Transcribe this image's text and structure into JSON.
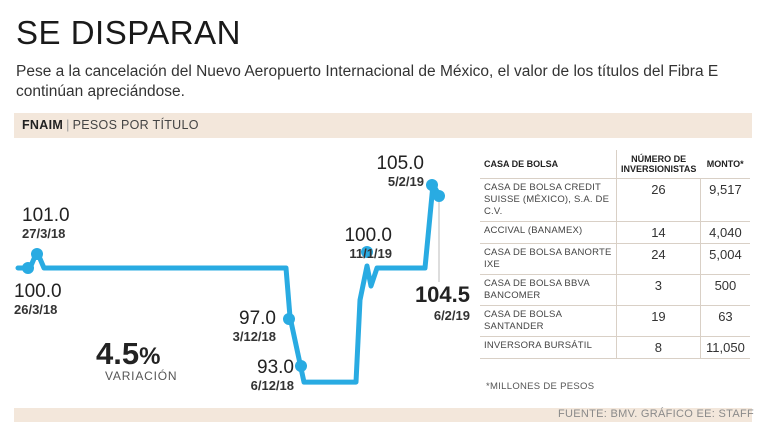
{
  "headline": "SE DISPARAN",
  "subtitle": "Pese a la cancelación del Nuevo Aeropuerto Internacional de México, el valor de los títulos del Fibra E continúan apreciándose.",
  "band": {
    "ticker": "FNAIM",
    "unit": "PESOS POR TÍTULO"
  },
  "variation": {
    "value": "4.5",
    "pct": "%",
    "label": "VARIACIÓN"
  },
  "source": "FUENTE: BMV. GRÁFICO EE: STAFF",
  "colors": {
    "line": "#29abe2",
    "band": "#f3e7db"
  },
  "chart_data": {
    "type": "line",
    "series": [
      {
        "values": [
          {
            "x": "26/3/18",
            "y": 100.0
          },
          {
            "x": "27/3/18",
            "y": 101.0
          },
          {
            "x": "3/12/18",
            "y": 100.0
          },
          {
            "x": "3/12/18",
            "y": 97.0
          },
          {
            "x": "6/12/18",
            "y": 93.0
          },
          {
            "x": "11/1/19",
            "y": 100.0
          },
          {
            "x": "5/2/19",
            "y": 105.0
          },
          {
            "x": "6/2/19",
            "y": 104.5
          }
        ]
      }
    ],
    "annotations": [
      {
        "value": "100.0",
        "date": "26/3/18"
      },
      {
        "value": "101.0",
        "date": "27/3/18"
      },
      {
        "value": "97.0",
        "date": "3/12/18"
      },
      {
        "value": "93.0",
        "date": "6/12/18"
      },
      {
        "value": "100.0",
        "date": "11/1/19"
      },
      {
        "value": "105.0",
        "date": "5/2/19"
      },
      {
        "value": "104.5",
        "date": "6/2/19"
      }
    ]
  },
  "table": {
    "headers": [
      "CASA DE BOLSA",
      "NÚMERO DE INVERSIONISTAS",
      "MONTO*"
    ],
    "rows": [
      {
        "name": "CASA DE BOLSA CREDIT SUISSE (MÉXICO), S.A. DE C.V.",
        "investors": "26",
        "amount": "9,517"
      },
      {
        "name": "ACCIVAL (BANAMEX)",
        "investors": "14",
        "amount": "4,040"
      },
      {
        "name": "CASA DE BOLSA BANORTE IXE",
        "investors": "24",
        "amount": "5,004"
      },
      {
        "name": "CASA DE BOLSA BBVA BANCOMER",
        "investors": "3",
        "amount": "500"
      },
      {
        "name": "CASA DE BOLSA SANTANDER",
        "investors": "19",
        "amount": "63"
      },
      {
        "name": "INVERSORA BURSÁTIL",
        "investors": "8",
        "amount": "11,050"
      }
    ],
    "note": "*MILLONES DE PESOS"
  }
}
